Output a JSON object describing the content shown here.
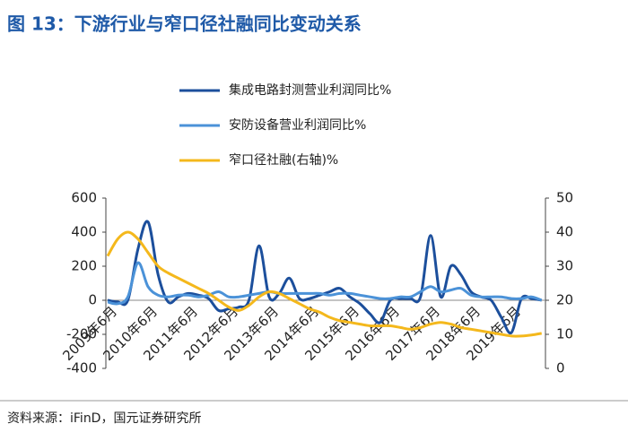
{
  "title": "图 13：下游行业与窄口径社融同比变动关系",
  "source": "资料来源：iFinD，国元证券研究所",
  "chart_data": {
    "type": "line",
    "categories": [
      "2009年6月",
      null,
      null,
      null,
      "2010年6月",
      null,
      null,
      null,
      "2011年6月",
      null,
      null,
      null,
      "2012年6月",
      null,
      null,
      null,
      "2013年6月",
      null,
      null,
      null,
      "2014年6月",
      null,
      null,
      null,
      "2015年6月",
      null,
      null,
      null,
      "2016年6月",
      null,
      null,
      null,
      "2017年6月",
      null,
      null,
      null,
      "2018年6月",
      null,
      null,
      null,
      "2019年6月",
      null,
      null,
      null
    ],
    "series": [
      {
        "name": "集成电路封测营业利润同比%",
        "color": "#1c4f9c",
        "values": [
          0,
          -10,
          0,
          300,
          460,
          150,
          -10,
          20,
          40,
          30,
          10,
          -60,
          -50,
          -40,
          0,
          320,
          20,
          40,
          130,
          10,
          10,
          30,
          50,
          70,
          20,
          -20,
          -80,
          -130,
          0,
          10,
          10,
          20,
          380,
          20,
          200,
          150,
          50,
          20,
          0,
          -100,
          -190,
          10,
          10,
          0
        ]
      },
      {
        "name": "安防设备营业利润同比%",
        "color": "#4b92d8",
        "values": [
          -10,
          -20,
          20,
          220,
          80,
          30,
          20,
          30,
          30,
          20,
          30,
          50,
          20,
          20,
          30,
          40,
          50,
          40,
          40,
          40,
          40,
          40,
          30,
          40,
          40,
          30,
          20,
          10,
          10,
          20,
          20,
          50,
          80,
          50,
          60,
          70,
          30,
          20,
          20,
          20,
          10,
          10,
          20,
          0
        ]
      },
      {
        "name": "窄口径社融(右轴)%",
        "color": "#f4b81c",
        "axis": "y2",
        "values": [
          33,
          38,
          40,
          38,
          34,
          30,
          28,
          26.5,
          25,
          23.5,
          22,
          20,
          18,
          17,
          18.5,
          21,
          22.5,
          22,
          20.5,
          19,
          17.5,
          16.5,
          15,
          14,
          13.5,
          13,
          12.5,
          12.5,
          12.5,
          12,
          11.5,
          12,
          13,
          13.5,
          13,
          12,
          11.5,
          11,
          10.5,
          10,
          9.5,
          9.5,
          9.8,
          10.3
        ]
      }
    ],
    "ylim": [
      -400,
      600
    ],
    "yticks": [
      -400,
      -200,
      0,
      200,
      400,
      600
    ],
    "y2lim": [
      0,
      50
    ],
    "y2ticks": [
      0,
      10,
      20,
      30,
      40,
      50
    ]
  }
}
